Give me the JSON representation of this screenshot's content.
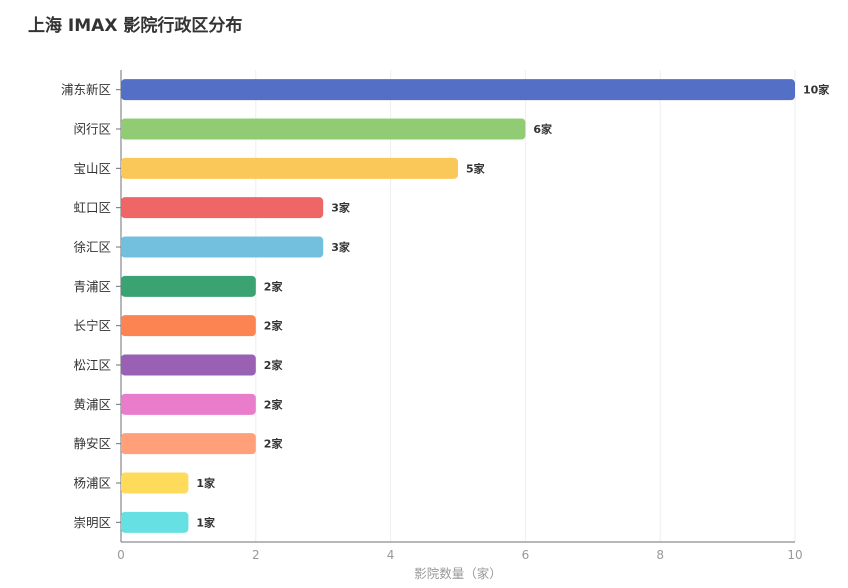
{
  "chart_data": {
    "type": "bar",
    "orientation": "horizontal",
    "title": "上海 IMAX 影院行政区分布",
    "xlabel": "影院数量（家）",
    "ylabel": "",
    "xlim": [
      0,
      10
    ],
    "x_ticks": [
      "0",
      "2",
      "4",
      "6",
      "8",
      "10"
    ],
    "grid": true,
    "categories": [
      "浦东新区",
      "闵行区",
      "宝山区",
      "虹口区",
      "徐汇区",
      "青浦区",
      "长宁区",
      "松江区",
      "黄浦区",
      "静安区",
      "杨浦区",
      "崇明区"
    ],
    "values": [
      10,
      6,
      5,
      3,
      3,
      2,
      2,
      2,
      2,
      2,
      1,
      1
    ],
    "data_labels": [
      "10家",
      "6家",
      "5家",
      "3家",
      "3家",
      "2家",
      "2家",
      "2家",
      "2家",
      "2家",
      "1家",
      "1家"
    ],
    "colors": [
      "#5470c6",
      "#91cc75",
      "#fac858",
      "#ee6666",
      "#73c0de",
      "#3ba272",
      "#fc8452",
      "#9a60b4",
      "#ea7ccc",
      "#ffa07a",
      "#ffdb5c",
      "#67e0e3"
    ]
  }
}
